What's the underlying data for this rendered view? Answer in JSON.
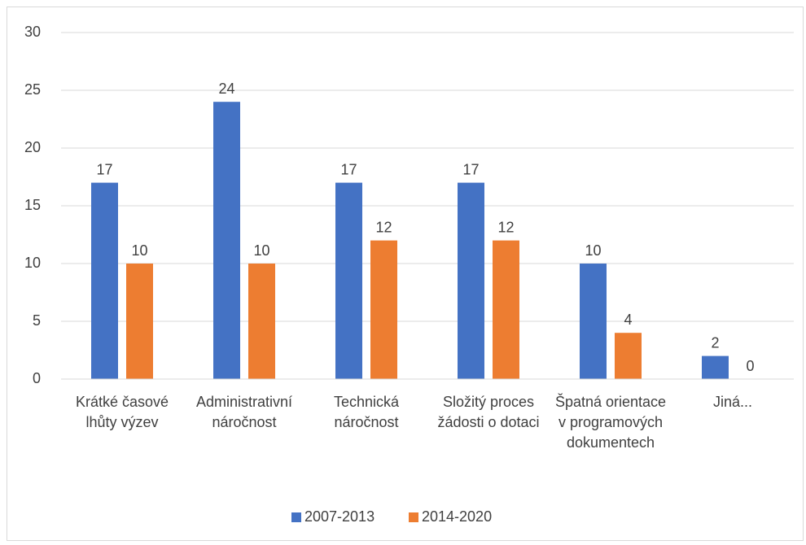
{
  "chart_data": {
    "type": "bar",
    "categories": [
      "Krátké časové lhůty výzev",
      "Administrativní náročnost",
      "Technická náročnost",
      "Složitý proces žádosti o dotaci",
      "Špatná orientace v programových dokumentech",
      "Jiná..."
    ],
    "series": [
      {
        "name": "2007-2013",
        "color": "#4472c4",
        "values": [
          17,
          24,
          17,
          17,
          10,
          2
        ]
      },
      {
        "name": "2014-2020",
        "color": "#ed7d31",
        "values": [
          10,
          10,
          12,
          12,
          4,
          0
        ]
      }
    ],
    "ylim": [
      0,
      30
    ],
    "yticks": [
      0,
      5,
      10,
      15,
      20,
      25,
      30
    ],
    "grid": true,
    "legend": "bottom"
  }
}
